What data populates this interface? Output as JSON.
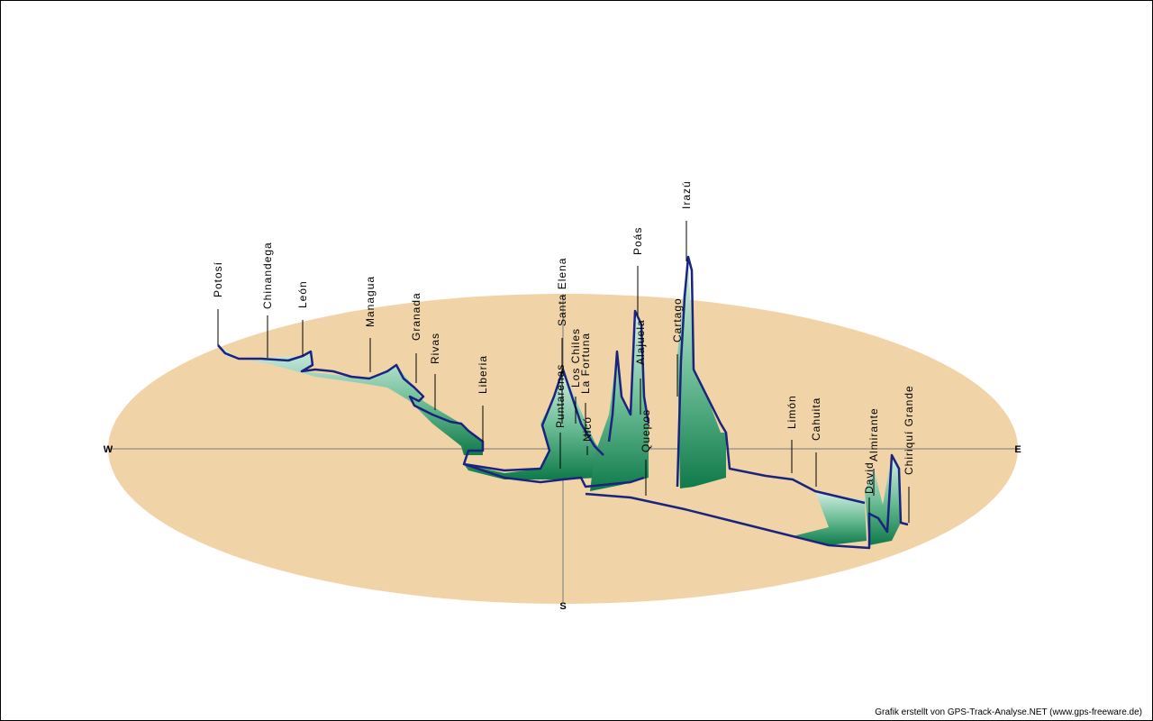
{
  "compass": {
    "west": "W",
    "east": "E",
    "south": "S"
  },
  "places": [
    "Potosí",
    "Chinandega",
    "León",
    "Managua",
    "Granada",
    "Rivas",
    "Liberia",
    "Santa Elena",
    "Puntarenas",
    "Los Chiles",
    "La Fortuna",
    "Nicó",
    "Poás",
    "Alajuela",
    "Quepos",
    "Cartago",
    "Irazú",
    "Limón",
    "Cahuita",
    "Almirante",
    "David",
    "Chiriquí Grande"
  ],
  "credit": "Grafik erstellt von GPS-Track-Analyse.NET (www.gps-freeware.de)"
}
